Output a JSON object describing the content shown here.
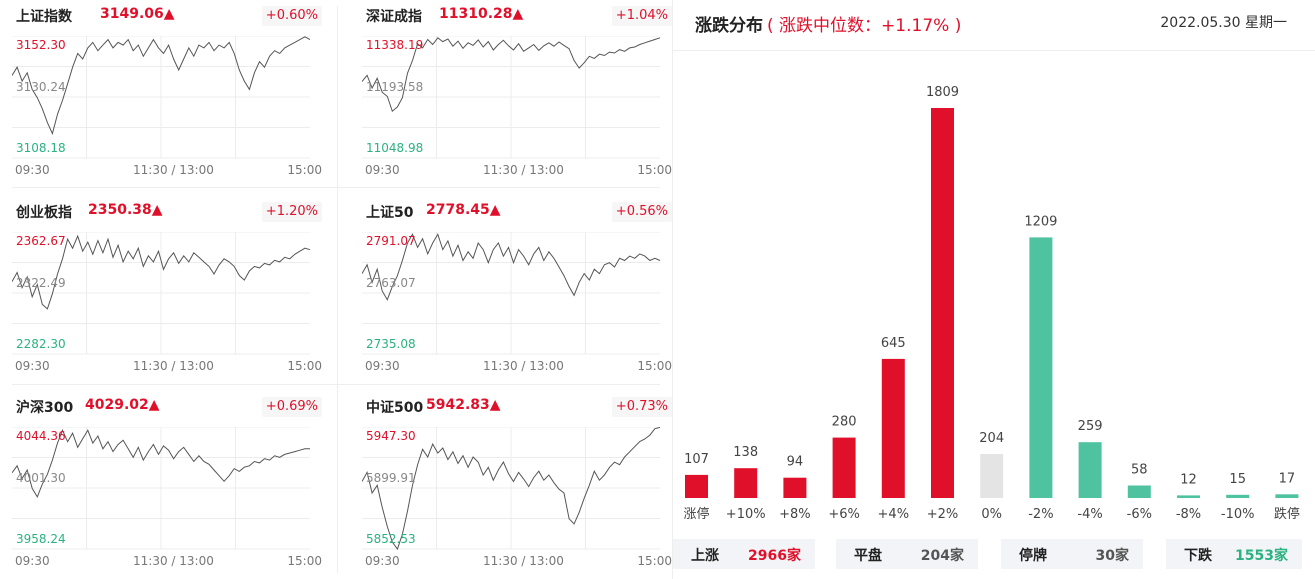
{
  "indices": [
    {
      "name": "上证指数",
      "price": "3149.06▲",
      "pct": "+0.60%",
      "high": "3152.30",
      "mid": "3130.24",
      "low": "3108.18",
      "times": [
        "09:30",
        "11:30 / 13:00",
        "15:00"
      ],
      "series": [
        3138,
        3141,
        3136,
        3139,
        3133,
        3130,
        3126,
        3121,
        3117,
        3124,
        3129,
        3135,
        3141,
        3146,
        3144,
        3148,
        3150,
        3147,
        3149,
        3151,
        3148,
        3150,
        3149,
        3151,
        3147,
        3149,
        3145,
        3148,
        3151,
        3148,
        3146,
        3149,
        3144,
        3140,
        3144,
        3148,
        3145,
        3149,
        3148,
        3150,
        3147,
        3149,
        3148,
        3150,
        3146,
        3140,
        3136,
        3133,
        3139,
        3143,
        3141,
        3145,
        3147,
        3146,
        3148,
        3149,
        3150,
        3151,
        3152,
        3151
      ]
    },
    {
      "name": "深证成指",
      "price": "11310.28▲",
      "pct": "+1.04%",
      "high": "11338.19",
      "mid": "11193.58",
      "low": "11048.98",
      "times": [
        "09:30",
        "11:30 / 13:00",
        "15:00"
      ],
      "series": [
        11230,
        11245,
        11215,
        11238,
        11205,
        11195,
        11160,
        11170,
        11192,
        11250,
        11280,
        11320,
        11310,
        11330,
        11318,
        11334,
        11325,
        11331,
        11314,
        11326,
        11309,
        11322,
        11316,
        11329,
        11312,
        11325,
        11305,
        11318,
        11328,
        11315,
        11305,
        11320,
        11302,
        11310,
        11318,
        11304,
        11315,
        11322,
        11314,
        11324,
        11316,
        11308,
        11280,
        11262,
        11275,
        11290,
        11285,
        11295,
        11292,
        11300,
        11298,
        11306,
        11302,
        11310,
        11312,
        11318,
        11322,
        11326,
        11330,
        11334
      ]
    },
    {
      "name": "创业板指",
      "price": "2350.38▲",
      "pct": "+1.20%",
      "high": "2362.67",
      "mid": "2322.49",
      "low": "2282.30",
      "times": [
        "09:30",
        "11:30 / 13:00",
        "15:00"
      ],
      "series": [
        2330,
        2336,
        2326,
        2333,
        2320,
        2328,
        2315,
        2312,
        2322,
        2335,
        2345,
        2358,
        2352,
        2360,
        2350,
        2356,
        2348,
        2357,
        2349,
        2358,
        2346,
        2354,
        2343,
        2350,
        2345,
        2352,
        2340,
        2347,
        2343,
        2350,
        2338,
        2345,
        2349,
        2342,
        2347,
        2343,
        2349,
        2346,
        2343,
        2340,
        2335,
        2341,
        2345,
        2343,
        2340,
        2334,
        2331,
        2337,
        2340,
        2339,
        2342,
        2341,
        2344,
        2343,
        2346,
        2345,
        2348,
        2350,
        2352,
        2351
      ]
    },
    {
      "name": "上证50",
      "price": "2778.45▲",
      "pct": "+0.56%",
      "high": "2791.07",
      "mid": "2763.07",
      "low": "2735.08",
      "times": [
        "09:30",
        "11:30 / 13:00",
        "15:00"
      ],
      "series": [
        2772,
        2776,
        2768,
        2774,
        2764,
        2760,
        2766,
        2771,
        2778,
        2786,
        2790,
        2784,
        2788,
        2781,
        2786,
        2790,
        2783,
        2787,
        2780,
        2785,
        2778,
        2782,
        2779,
        2786,
        2783,
        2777,
        2783,
        2786,
        2780,
        2784,
        2777,
        2783,
        2780,
        2776,
        2781,
        2784,
        2778,
        2782,
        2779,
        2775,
        2771,
        2766,
        2762,
        2768,
        2772,
        2769,
        2774,
        2772,
        2776,
        2777,
        2775,
        2779,
        2778,
        2780,
        2779,
        2781,
        2780,
        2778,
        2779,
        2778
      ]
    },
    {
      "name": "沪深300",
      "price": "4029.02▲",
      "pct": "+0.69%",
      "high": "4044.36",
      "mid": "4001.30",
      "low": "3958.24",
      "times": [
        "09:30",
        "11:30 / 13:00",
        "15:00"
      ],
      "series": [
        4012,
        4017,
        4008,
        4014,
        4001,
        3995,
        4004,
        4011,
        4021,
        4033,
        4042,
        4034,
        4040,
        4030,
        4036,
        4042,
        4033,
        4038,
        4029,
        4034,
        4027,
        4032,
        4035,
        4029,
        4023,
        4030,
        4021,
        4027,
        4032,
        4025,
        4031,
        4028,
        4022,
        4027,
        4030,
        4025,
        4020,
        4024,
        4020,
        4018,
        4014,
        4010,
        4006,
        4010,
        4015,
        4013,
        4016,
        4017,
        4020,
        4019,
        4022,
        4021,
        4024,
        4023,
        4025,
        4026,
        4027,
        4028,
        4029,
        4029
      ]
    },
    {
      "name": "中证500",
      "price": "5942.83▲",
      "pct": "+0.73%",
      "high": "5947.30",
      "mid": "5899.91",
      "low": "5852.53",
      "times": [
        "09:30",
        "11:30 / 13:00",
        "15:00"
      ],
      "series": [
        5905,
        5912,
        5896,
        5902,
        5885,
        5870,
        5858,
        5852,
        5864,
        5882,
        5902,
        5918,
        5930,
        5924,
        5934,
        5927,
        5931,
        5922,
        5928,
        5919,
        5925,
        5916,
        5924,
        5920,
        5910,
        5916,
        5906,
        5914,
        5920,
        5911,
        5905,
        5912,
        5907,
        5901,
        5908,
        5913,
        5906,
        5910,
        5904,
        5899,
        5896,
        5876,
        5872,
        5881,
        5892,
        5902,
        5913,
        5906,
        5910,
        5916,
        5920,
        5918,
        5924,
        5928,
        5932,
        5936,
        5938,
        5941,
        5946,
        5947
      ]
    }
  ],
  "distribution": {
    "title": "涨跌分布",
    "median_label": "( 涨跌中位数：+1.17% )",
    "date": "2022.05.30 星期一",
    "colors": {
      "up": "#e0102a",
      "down": "#4fc29f",
      "flat": "#e4e4e4"
    }
  },
  "chart_data": {
    "type": "bar",
    "title": "涨跌分布",
    "categories": [
      "涨停",
      "+10%",
      "+8%",
      "+6%",
      "+4%",
      "+2%",
      "0%",
      "-2%",
      "-4%",
      "-6%",
      "-8%",
      "-10%",
      "跌停"
    ],
    "values": [
      107,
      138,
      94,
      280,
      645,
      1809,
      204,
      1209,
      259,
      58,
      12,
      15,
      17
    ],
    "colors": [
      "up",
      "up",
      "up",
      "up",
      "up",
      "up",
      "flat",
      "down",
      "down",
      "down",
      "down",
      "down",
      "down"
    ],
    "ylim": [
      0,
      1900
    ],
    "grid": false,
    "legend": "none"
  },
  "summary": [
    {
      "label": "上涨",
      "value": "2966家",
      "color": "#e0102a"
    },
    {
      "label": "平盘",
      "value": "204家",
      "color": "#555555"
    },
    {
      "label": "停牌",
      "value": "30家",
      "color": "#555555"
    },
    {
      "label": "下跌",
      "value": "1553家",
      "color": "#2bb280"
    }
  ]
}
